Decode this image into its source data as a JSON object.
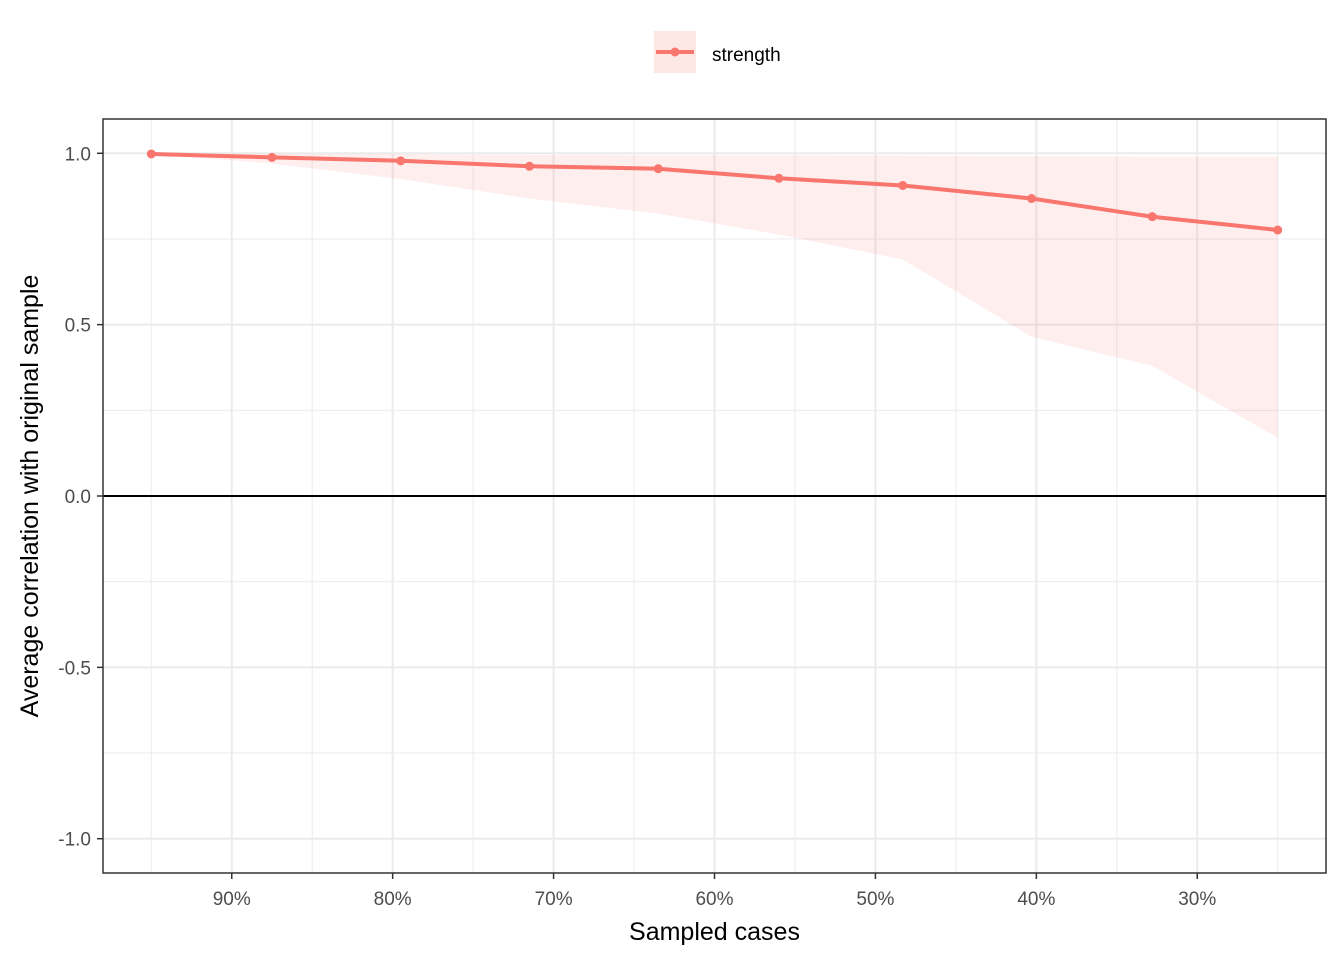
{
  "chart_data": {
    "type": "line",
    "xlabel": "Sampled cases",
    "ylabel": "Average correlation with original sample",
    "x_reversed": true,
    "xlim": [
      0.98,
      0.22
    ],
    "ylim": [
      -1.1,
      1.1
    ],
    "x_ticks": [
      0.9,
      0.8,
      0.7,
      0.6,
      0.5,
      0.4,
      0.3
    ],
    "x_tick_labels": [
      "90%",
      "80%",
      "70%",
      "60%",
      "50%",
      "40%",
      "30%"
    ],
    "y_ticks": [
      1.0,
      0.5,
      0.0,
      -0.5,
      -1.0
    ],
    "y_tick_labels": [
      "1.0",
      "0.5",
      "0.0",
      "-0.5",
      "-1.0"
    ],
    "reference_line_y": 0,
    "grid": true,
    "legend_position": "top",
    "series": [
      {
        "name": "strength",
        "color": "#F8766D",
        "x": [
          0.95,
          0.875,
          0.795,
          0.715,
          0.635,
          0.56,
          0.483,
          0.403,
          0.328,
          0.25
        ],
        "values": [
          0.998,
          0.988,
          0.978,
          0.962,
          0.955,
          0.927,
          0.906,
          0.868,
          0.815,
          0.776
        ],
        "band_upper": [
          0.998,
          0.998,
          0.997,
          0.995,
          0.994,
          0.994,
          0.993,
          0.992,
          0.99,
          0.99
        ],
        "band_lower": [
          0.998,
          0.97,
          0.925,
          0.868,
          0.824,
          0.763,
          0.69,
          0.465,
          0.38,
          0.17
        ]
      }
    ]
  }
}
